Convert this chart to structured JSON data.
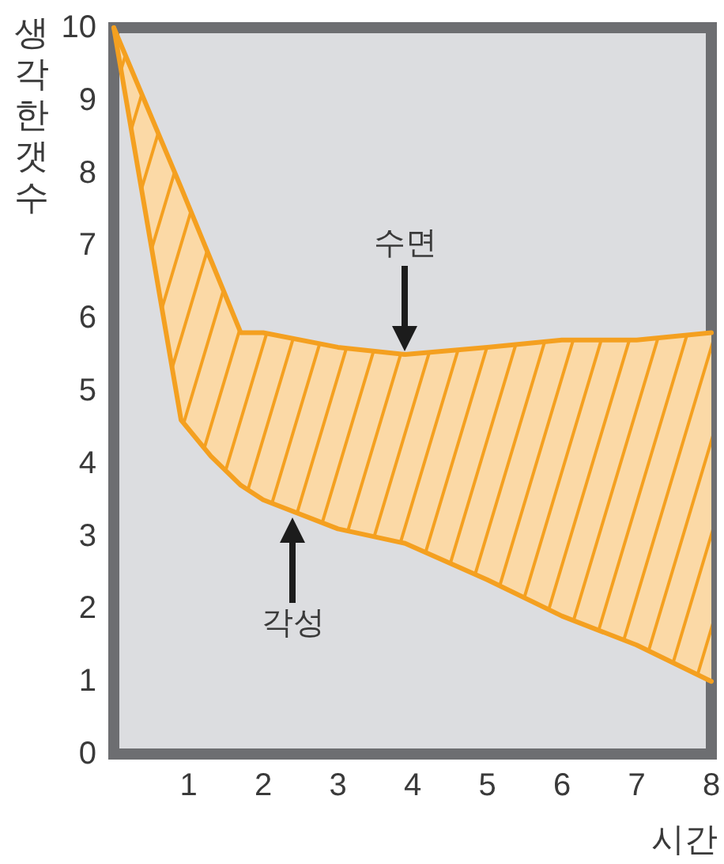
{
  "chart_data": {
    "type": "line",
    "xlabel": "시간",
    "ylabel": "생각한 갯수",
    "x": [
      0,
      0.9,
      1.3,
      1.7,
      2,
      3,
      3.9,
      5,
      6,
      7,
      8
    ],
    "series": [
      {
        "color": "#f4a020",
        "values": [
          10,
          7.8,
          6.8,
          5.8,
          5.8,
          5.6,
          5.5,
          5.6,
          5.7,
          5.7,
          5.8
        ],
        "lower": [
          10,
          4.6,
          4.1,
          3.7,
          3.5,
          3.1,
          2.9,
          2.4,
          1.9,
          1.5,
          1.0
        ],
        "upper": [
          10,
          7.8,
          6.8,
          5.8,
          5.8,
          5.6,
          5.5,
          5.6,
          5.7,
          5.7,
          5.8
        ]
      },
      {
        "color": "#f4a020",
        "values": [
          10,
          4.6,
          4.1,
          3.7,
          3.5,
          3.1,
          2.9,
          2.4,
          1.9,
          1.5,
          1.0
        ]
      }
    ],
    "xlim": [
      0,
      8
    ],
    "xticks": [
      1,
      2,
      3,
      4,
      5,
      6,
      7,
      8
    ],
    "ylim": [
      0,
      10
    ],
    "yticks": [
      0,
      1,
      2,
      3,
      4,
      5,
      6,
      7,
      8,
      9,
      10
    ],
    "annotations": [
      {
        "text": "수면",
        "x": 3.9,
        "y": 5.5
      },
      {
        "text": "각성",
        "x": 2.4,
        "y": 3.3
      }
    ]
  }
}
